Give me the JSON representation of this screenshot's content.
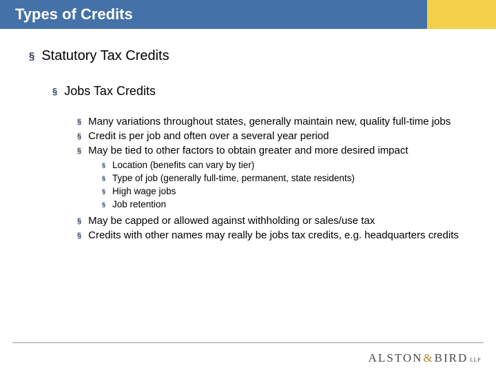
{
  "header": {
    "title": "Types of Credits",
    "bar_blue": "#4472a8",
    "bar_yellow": "#f2d049"
  },
  "content": {
    "l1": "Statutory Tax Credits",
    "l2": "Jobs Tax Credits",
    "l3a": "Many variations throughout states, generally maintain new, quality full-time jobs",
    "l3b": "Credit is per job and often over a several year period",
    "l3c": "May be tied to other factors to obtain greater and more desired impact",
    "l4a": "Location (benefits can vary by tier)",
    "l4b": "Type of job (generally full-time, permanent, state residents)",
    "l4c": "High wage jobs",
    "l4d": "Job retention",
    "l3d": "May be capped or allowed against withholding or sales/use tax",
    "l3e": "Credits with other names may really be jobs tax credits, e.g. headquarters credits"
  },
  "logo": {
    "part1": "ALSTON",
    "amp": "&",
    "part2": "BIRD",
    "suffix": "LLP"
  },
  "bullet_char": "§"
}
